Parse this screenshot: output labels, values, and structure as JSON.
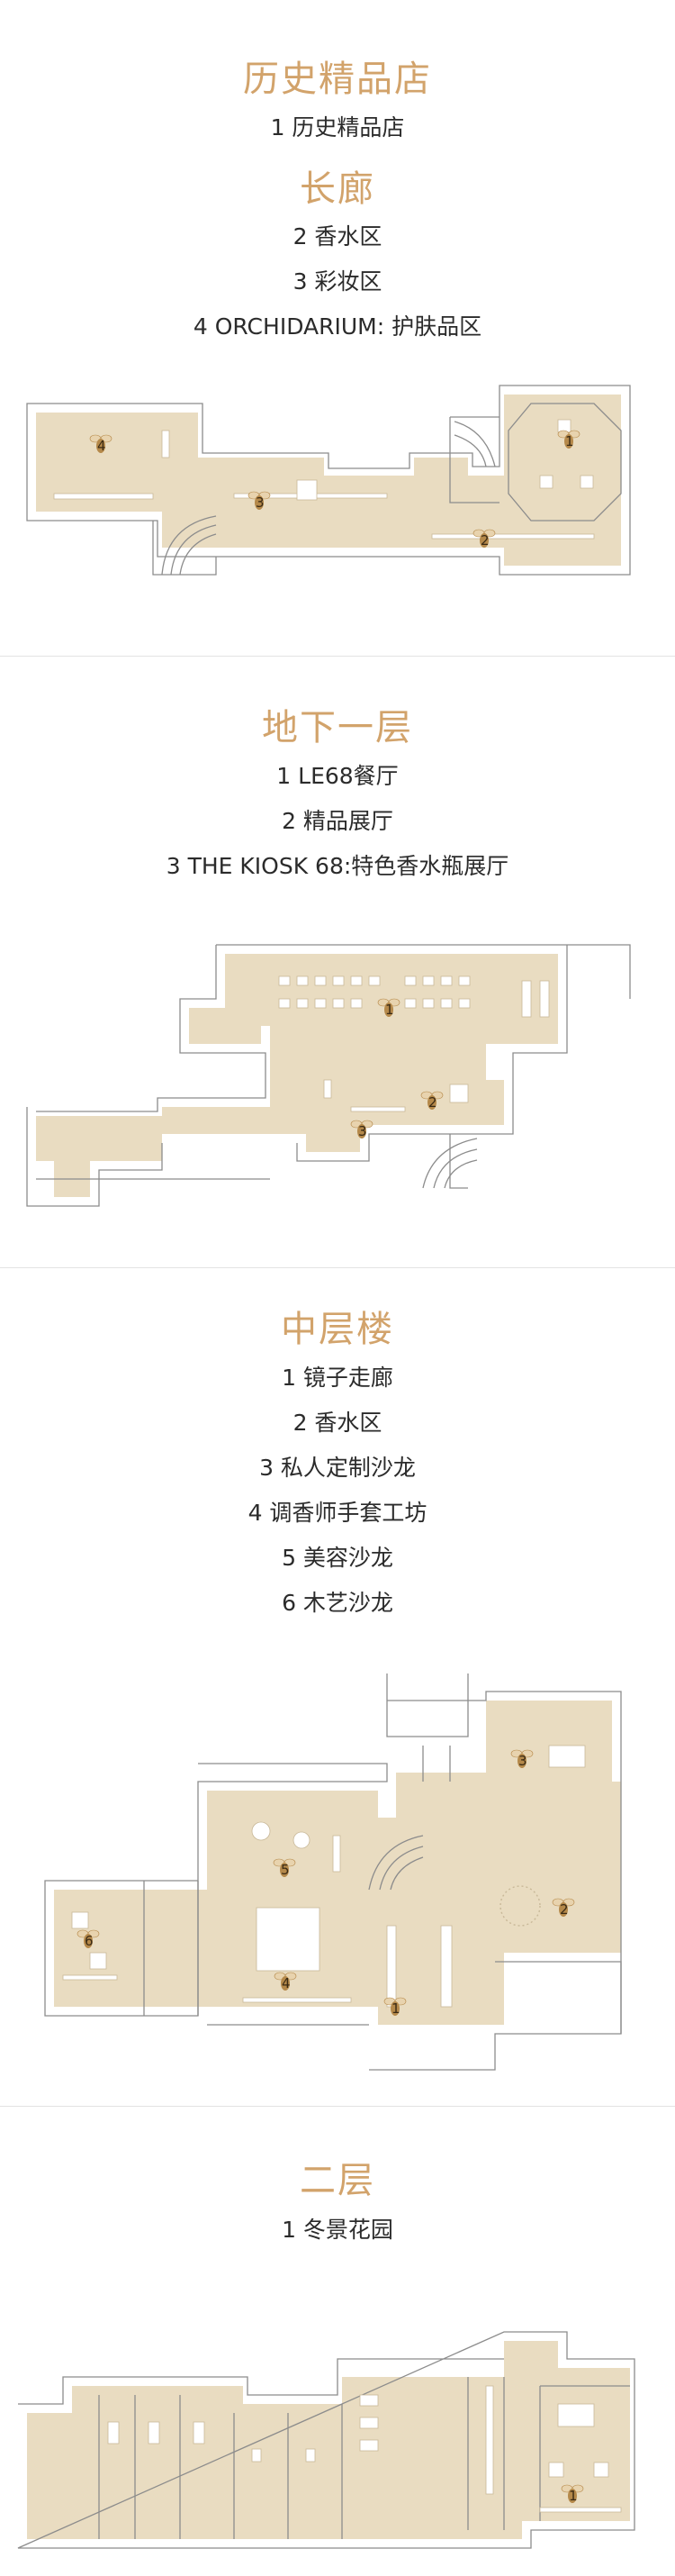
{
  "sections": [
    {
      "heading": "历史精品店",
      "items": [
        "1 历史精品店"
      ],
      "subheading": "长廊",
      "subitems": [
        "2 香水区",
        "3 彩妆区",
        "4 ORCHIDARIUM: 护肤品区"
      ],
      "markers": [
        "1",
        "2",
        "3",
        "4"
      ]
    },
    {
      "heading": "地下一层",
      "items": [
        "1 LE68餐厅",
        "2 精品展厅",
        "3 THE KIOSK 68:特色香水瓶展厅"
      ],
      "markers": [
        "1",
        "2",
        "3"
      ]
    },
    {
      "heading": "中层楼",
      "items": [
        "1 镜子走廊",
        "2 香水区",
        "3 私人定制沙龙",
        "4 调香师手套工坊",
        "5 美容沙龙",
        "6 木艺沙龙"
      ],
      "markers": [
        "1",
        "2",
        "3",
        "4",
        "5",
        "6"
      ]
    },
    {
      "heading": "二层",
      "items": [
        "1 冬景花园"
      ],
      "markers": [
        "1"
      ]
    }
  ],
  "colors": {
    "accent": "#d2a36b",
    "room": "#e9dcc1",
    "wall": "#8c8c8c",
    "marker": "#b5894a"
  },
  "icons": {
    "marker": "bee-icon"
  }
}
